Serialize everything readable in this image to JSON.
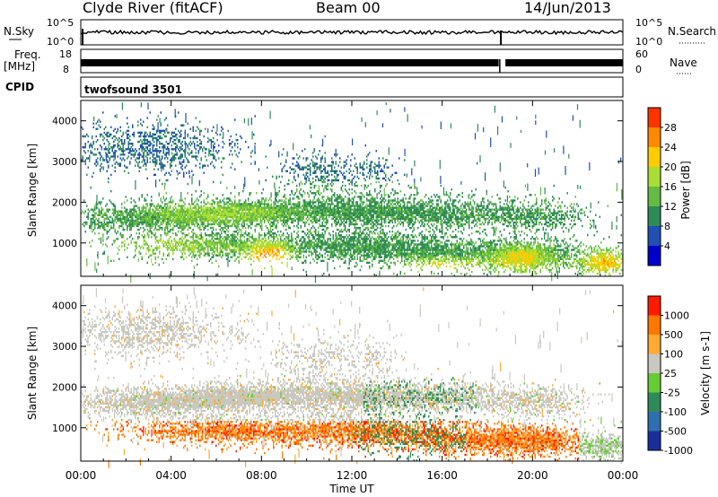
{
  "header": {
    "title": "Clyde River (fitACF)",
    "beam": "Beam 00",
    "date": "14/Jun/2013"
  },
  "strips": {
    "nsky": {
      "label": "N.Sky",
      "ticks": [
        "10^5",
        "10^0"
      ],
      "right_label": "N.Search",
      "right_ticks": [
        "10^5",
        "10^0"
      ]
    },
    "freq": {
      "label_top": "Freq.",
      "label_unit": "[MHz]",
      "ticks": [
        "18",
        "8"
      ],
      "right_label": "Nave",
      "right_ticks": [
        "60",
        "0"
      ]
    },
    "cpid": {
      "label": "CPID",
      "value": "twofsound 3501"
    }
  },
  "chart_data": [
    {
      "type": "heatmap",
      "name": "power-panel",
      "xlabel": "",
      "ylabel": "Slant Range [km]",
      "ylim": [
        180,
        4500
      ],
      "y_ticks": [
        "4000",
        "3000",
        "2000",
        "1000"
      ],
      "y_tick_values": [
        4000,
        3000,
        2000,
        1000
      ],
      "colorbar": {
        "label": "Power [dB]",
        "range": [
          0,
          32
        ],
        "ticks": [
          "28",
          "24",
          "20",
          "16",
          "12",
          "8",
          "4"
        ],
        "tick_values": [
          28,
          24,
          20,
          16,
          12,
          8,
          4
        ],
        "colors": [
          "#0000cc",
          "#1f4fb3",
          "#2e8b57",
          "#66bb44",
          "#aadd33",
          "#ffcc00",
          "#ff8800",
          "#ff3300"
        ]
      }
    },
    {
      "type": "heatmap",
      "name": "velocity-panel",
      "xlabel": "Time UT",
      "ylabel": "Slant Range [km]",
      "ylim": [
        180,
        4500
      ],
      "y_ticks": [
        "4000",
        "3000",
        "2000",
        "1000"
      ],
      "y_tick_values": [
        4000,
        3000,
        2000,
        1000
      ],
      "x_ticks": [
        "00:00",
        "04:00",
        "08:00",
        "12:00",
        "16:00",
        "20:00",
        "00:00"
      ],
      "x_tick_hours": [
        0,
        4,
        8,
        12,
        16,
        20,
        24
      ],
      "colorbar": {
        "label": "Velocity [m s-1]",
        "ticks": [
          "1000",
          "500",
          "100",
          "25",
          "-25",
          "-100",
          "-500",
          "-1000"
        ],
        "colors": [
          "#1a2f9c",
          "#2f6fb0",
          "#2e8b57",
          "#66cc33",
          "#c8c8c0",
          "#ffaa33",
          "#ff7700",
          "#ff1a00"
        ]
      }
    }
  ]
}
